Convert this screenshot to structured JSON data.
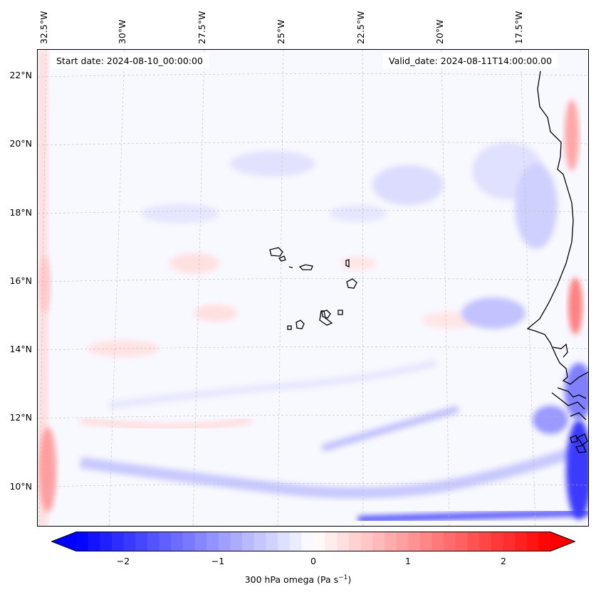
{
  "header": {
    "start_date": "Start date: 2024-08-10_00:00:00",
    "valid_date": "Valid_date: 2024-08-11T14:00:00.00"
  },
  "axes": {
    "lon_labels": [
      "32.5°W",
      "30°W",
      "27.5°W",
      "25°W",
      "22.5°W",
      "20°W",
      "17.5°W"
    ],
    "lat_labels": [
      "22°N",
      "20°N",
      "18°N",
      "16°N",
      "14°N",
      "12°N",
      "10°N"
    ]
  },
  "colorbar": {
    "ticks": [
      "−2",
      "−1",
      "0",
      "1",
      "2"
    ],
    "label": "300 hPa omega (Pa s",
    "label_sup": "−1",
    "label_close": ")",
    "min": -2.7,
    "max": 2.7,
    "cmap": "bwr"
  },
  "colors": {
    "negative": "#0000ff",
    "positive": "#ff0000",
    "neutral": "#ffffff",
    "coastline": "#000000",
    "gridline": "#bbbbbb"
  }
}
